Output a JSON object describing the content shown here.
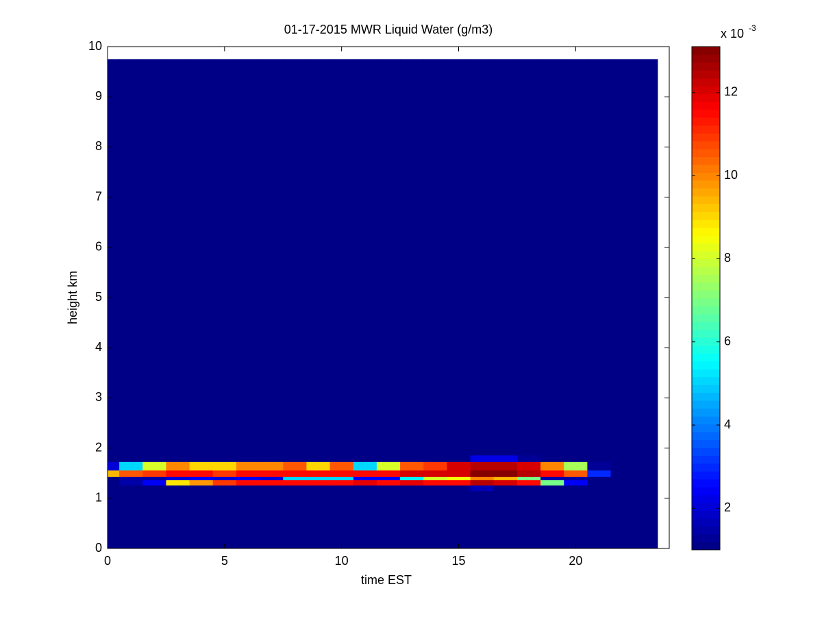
{
  "chart_data": {
    "type": "heatmap",
    "title": "01-17-2015 MWR Liquid Water (g/m3)",
    "xlabel": "time EST",
    "ylabel": "height km",
    "colormap": "jet",
    "x_edges": [
      0,
      0.5,
      1.5,
      2.5,
      3.5,
      4.5,
      5.5,
      6.5,
      7.5,
      8.5,
      9.5,
      10.5,
      11.5,
      12.5,
      13.5,
      14.5,
      15.5,
      16.5,
      17.5,
      18.5,
      19.5,
      20.5,
      21.5,
      22.5,
      23.5
    ],
    "y_edges": [
      0,
      1.15,
      1.26,
      1.37,
      1.43,
      1.56,
      1.73,
      1.86,
      9.75
    ],
    "values": [
      [
        1,
        1,
        1,
        1,
        1,
        1,
        1,
        1,
        1,
        1,
        1,
        1,
        1,
        1,
        1,
        1,
        1,
        1,
        1,
        1,
        1,
        1,
        1,
        1
      ],
      [
        1,
        1,
        1,
        1,
        1,
        1,
        1,
        1,
        1,
        1,
        1,
        1,
        1,
        1,
        1,
        1,
        1.6,
        1,
        1,
        1,
        1,
        1,
        1,
        1
      ],
      [
        1,
        1.5,
        2.5,
        8.8,
        9.8,
        11,
        11.5,
        11.5,
        11.5,
        11.5,
        11.5,
        11.8,
        11.5,
        11.8,
        11.5,
        11.5,
        12.5,
        12,
        11.5,
        7,
        2.5,
        1,
        1,
        1
      ],
      [
        1,
        1.5,
        1.5,
        2,
        2.5,
        2,
        2.5,
        2,
        5,
        5,
        5,
        2.5,
        2.5,
        5.5,
        8,
        8.5,
        10,
        9.5,
        7,
        1.5,
        1.5,
        1,
        1,
        1
      ],
      [
        9.5,
        10.5,
        11,
        11.5,
        11.5,
        11,
        11.5,
        11.5,
        11.5,
        11.5,
        11.5,
        11.5,
        11.5,
        12,
        12,
        12,
        13,
        13,
        12.5,
        11.5,
        10.5,
        3,
        1,
        1
      ],
      [
        2,
        5,
        8,
        10,
        9,
        9,
        10,
        10,
        10.5,
        9,
        10.5,
        5,
        8,
        10.5,
        11,
        12,
        12.5,
        12.5,
        12,
        10,
        7.5,
        1.3,
        1,
        1
      ],
      [
        1,
        1,
        1,
        1,
        1,
        1,
        1,
        1,
        1,
        1,
        1,
        1,
        1,
        1,
        1,
        1,
        2.2,
        2.2,
        1.3,
        1,
        1,
        1,
        1,
        1
      ],
      [
        1,
        1,
        1,
        1,
        1,
        1,
        1,
        1,
        1,
        1,
        1,
        1,
        1,
        1,
        1,
        1,
        1,
        1,
        1,
        1,
        1,
        1,
        1,
        1
      ]
    ],
    "xlim": [
      0,
      24
    ],
    "xticks": [
      0,
      5,
      10,
      15,
      20
    ],
    "ylim": [
      0,
      10
    ],
    "yticks": [
      0,
      1,
      2,
      3,
      4,
      5,
      6,
      7,
      8,
      9,
      10
    ],
    "colorbar": {
      "clim": [
        1,
        13.1
      ],
      "ticks": [
        2,
        4,
        6,
        8,
        10,
        12
      ],
      "multiplier": "x 10",
      "exponent": "-3"
    }
  }
}
